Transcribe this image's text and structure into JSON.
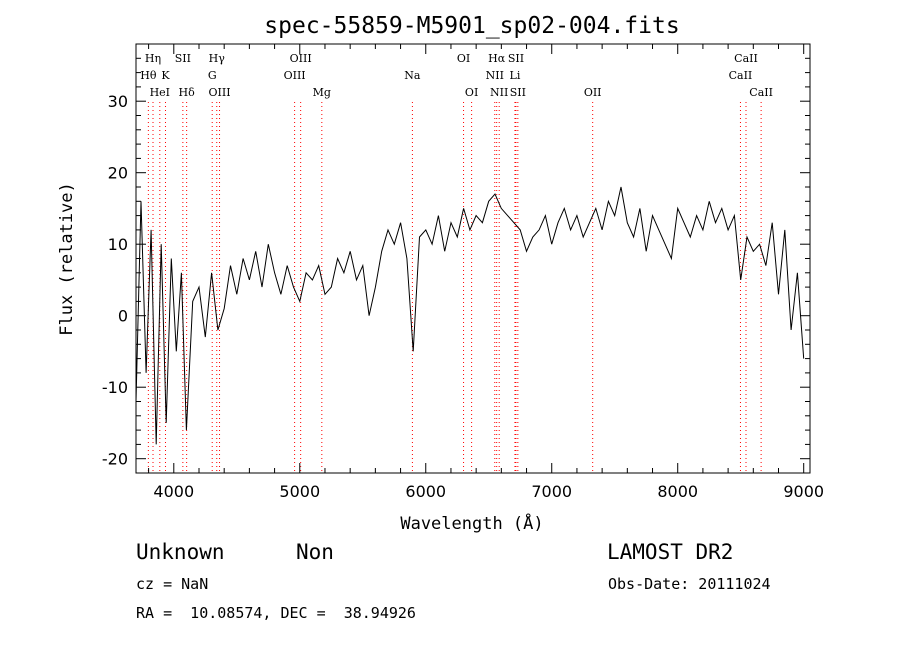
{
  "chart_data": {
    "type": "line",
    "title": "spec-55859-M5901_sp02-004.fits",
    "xlabel": "Wavelength (Å)",
    "ylabel": "Flux (relative)",
    "xlim": [
      3700,
      9050
    ],
    "ylim": [
      -22,
      38
    ],
    "xticks": [
      4000,
      5000,
      6000,
      7000,
      8000,
      9000
    ],
    "yticks": [
      -20,
      -10,
      0,
      10,
      20,
      30
    ],
    "grid": false,
    "series": [
      {
        "x": [
          3700,
          3740,
          3780,
          3820,
          3860,
          3900,
          3940,
          3980,
          4020,
          4060,
          4100,
          4150,
          4200,
          4250,
          4300,
          4350,
          4400,
          4450,
          4500,
          4550,
          4600,
          4650,
          4700,
          4750,
          4800,
          4850,
          4900,
          4950,
          5000,
          5050,
          5100,
          5150,
          5200,
          5250,
          5300,
          5350,
          5400,
          5450,
          5500,
          5550,
          5600,
          5650,
          5700,
          5750,
          5800,
          5850,
          5900,
          5950,
          6000,
          6050,
          6100,
          6150,
          6200,
          6250,
          6300,
          6350,
          6400,
          6450,
          6500,
          6550,
          6600,
          6650,
          6700,
          6750,
          6800,
          6850,
          6900,
          6950,
          7000,
          7050,
          7100,
          7150,
          7200,
          7250,
          7300,
          7350,
          7400,
          7450,
          7500,
          7550,
          7600,
          7650,
          7700,
          7750,
          7800,
          7850,
          7900,
          7950,
          8000,
          8050,
          8100,
          8150,
          8200,
          8250,
          8300,
          8350,
          8400,
          8450,
          8500,
          8550,
          8600,
          8650,
          8700,
          8750,
          8800,
          8850,
          8900,
          8950,
          9000
        ],
        "y": [
          -12,
          16,
          -8,
          12,
          -18,
          10,
          -15,
          8,
          -5,
          6,
          -16,
          2,
          4,
          -3,
          6,
          -2,
          1,
          7,
          3,
          8,
          5,
          9,
          4,
          10,
          6,
          3,
          7,
          4,
          2,
          6,
          5,
          7,
          3,
          4,
          8,
          6,
          9,
          5,
          7,
          0,
          4,
          9,
          12,
          10,
          13,
          8,
          -5,
          11,
          12,
          10,
          14,
          9,
          13,
          11,
          15,
          12,
          14,
          13,
          16,
          17,
          15,
          14,
          13,
          12,
          9,
          11,
          12,
          14,
          10,
          13,
          15,
          12,
          14,
          11,
          13,
          15,
          12,
          16,
          14,
          18,
          13,
          11,
          15,
          9,
          14,
          12,
          10,
          8,
          15,
          13,
          11,
          14,
          12,
          16,
          13,
          15,
          12,
          14,
          5,
          11,
          9,
          10,
          7,
          13,
          3,
          12,
          -2,
          6,
          -6
        ]
      }
    ],
    "line_labels": [
      {
        "text": "Hη",
        "wavelength": 3835,
        "row": 1
      },
      {
        "text": "Hθ",
        "wavelength": 3798,
        "row": 2
      },
      {
        "text": "K",
        "wavelength": 3934,
        "row": 2
      },
      {
        "text": "HeI",
        "wavelength": 3889,
        "row": 3
      },
      {
        "text": "SII",
        "wavelength": 4072,
        "row": 1
      },
      {
        "text": "Hδ",
        "wavelength": 4102,
        "row": 3
      },
      {
        "text": "Hγ",
        "wavelength": 4341,
        "row": 1
      },
      {
        "text": "G",
        "wavelength": 4305,
        "row": 2
      },
      {
        "text": "OIII",
        "wavelength": 4363,
        "row": 3
      },
      {
        "text": "OIII",
        "wavelength": 5007,
        "row": 1
      },
      {
        "text": "OIII",
        "wavelength": 4959,
        "row": 2
      },
      {
        "text": "Mg",
        "wavelength": 5175,
        "row": 3
      },
      {
        "text": "Na",
        "wavelength": 5894,
        "row": 2
      },
      {
        "text": "OI",
        "wavelength": 6300,
        "row": 1
      },
      {
        "text": "OI",
        "wavelength": 6364,
        "row": 3
      },
      {
        "text": "Hα",
        "wavelength": 6563,
        "row": 1
      },
      {
        "text": "NII",
        "wavelength": 6548,
        "row": 2
      },
      {
        "text": "NII",
        "wavelength": 6583,
        "row": 3
      },
      {
        "text": "SII",
        "wavelength": 6716,
        "row": 1
      },
      {
        "text": "Li",
        "wavelength": 6708,
        "row": 2
      },
      {
        "text": "SII",
        "wavelength": 6731,
        "row": 3
      },
      {
        "text": "OII",
        "wavelength": 7325,
        "row": 3
      },
      {
        "text": "CaII",
        "wavelength": 8542,
        "row": 1
      },
      {
        "text": "CaII",
        "wavelength": 8498,
        "row": 2
      },
      {
        "text": "CaII",
        "wavelength": 8662,
        "row": 3
      }
    ],
    "line_color": "#000000",
    "marker_color": "#ff0000"
  },
  "footer": {
    "class": "Unknown",
    "subclass": "Non",
    "survey": "LAMOST DR2",
    "cz": "cz = NaN",
    "obs_date": "Obs-Date: 20111024",
    "coords": "RA =  10.08574, DEC =  38.94926"
  }
}
